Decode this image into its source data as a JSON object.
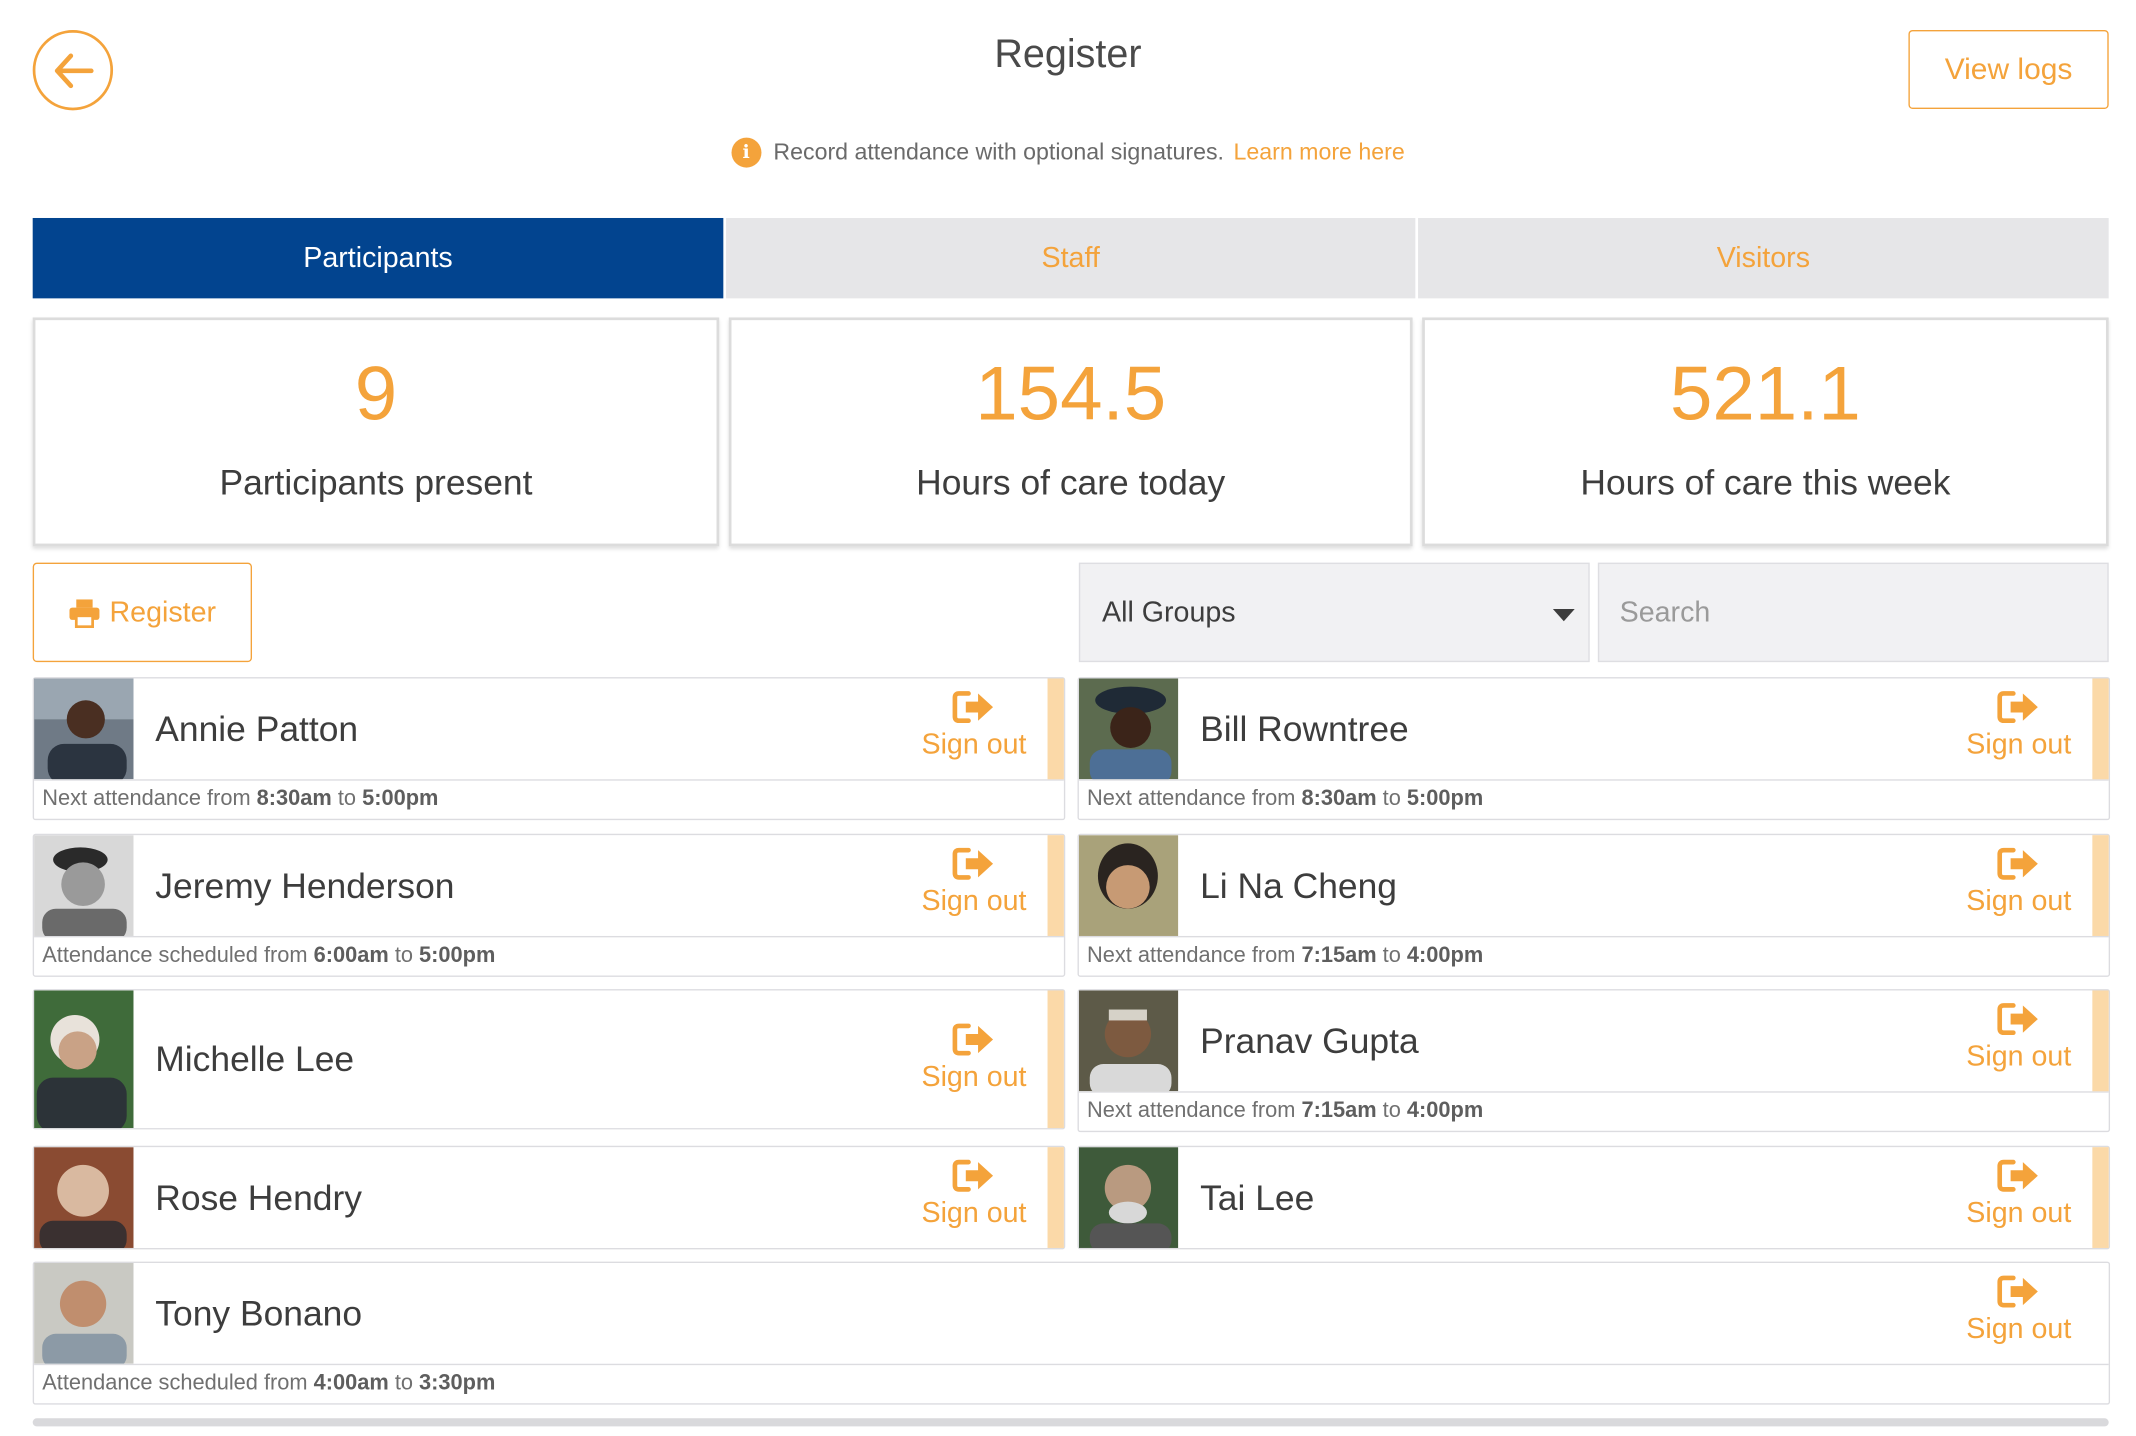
{
  "header": {
    "title": "Register",
    "view_logs_label": "View logs",
    "info_text": "Record attendance with optional signatures.",
    "learn_more_label": "Learn more here"
  },
  "tabs": [
    {
      "label": "Participants",
      "active": true
    },
    {
      "label": "Staff",
      "active": false
    },
    {
      "label": "Visitors",
      "active": false
    }
  ],
  "stats": [
    {
      "value": "9",
      "label": "Participants present"
    },
    {
      "value": "154.5",
      "label": "Hours of care today"
    },
    {
      "value": "521.1",
      "label": "Hours of care this week"
    }
  ],
  "toolbar": {
    "register_label": "Register",
    "group_value": "All Groups",
    "search_placeholder": "Search"
  },
  "sign_out_label": "Sign out",
  "people": [
    {
      "name": "Annie Patton",
      "note_prefix": "Next attendance from ",
      "from": "8:30am",
      "to": "5:00pm"
    },
    {
      "name": "Bill Rowntree",
      "note_prefix": "Next attendance from ",
      "from": "8:30am",
      "to": "5:00pm"
    },
    {
      "name": "Jeremy Henderson",
      "note_prefix": "Attendance scheduled from ",
      "from": "6:00am",
      "to": "5:00pm"
    },
    {
      "name": "Li Na Cheng",
      "note_prefix": "Next attendance from ",
      "from": "7:15am",
      "to": "4:00pm"
    },
    {
      "name": "Michelle Lee"
    },
    {
      "name": "Pranav Gupta",
      "note_prefix": "Next attendance from ",
      "from": "7:15am",
      "to": "4:00pm"
    },
    {
      "name": "Rose Hendry"
    },
    {
      "name": "Tai Lee"
    },
    {
      "name": "Tony Bonano",
      "note_prefix": "Attendance scheduled from ",
      "from": "4:00am",
      "to": "3:30pm"
    }
  ],
  "note_to_word": " to ",
  "colors": {
    "accent": "#f4a33b",
    "active_tab": "#02448f",
    "stripe": "#fbd9a8"
  },
  "icons": {
    "back": "arrow-left-icon",
    "info": "info-icon",
    "print": "printer-icon",
    "sign_out": "sign-out-icon"
  }
}
